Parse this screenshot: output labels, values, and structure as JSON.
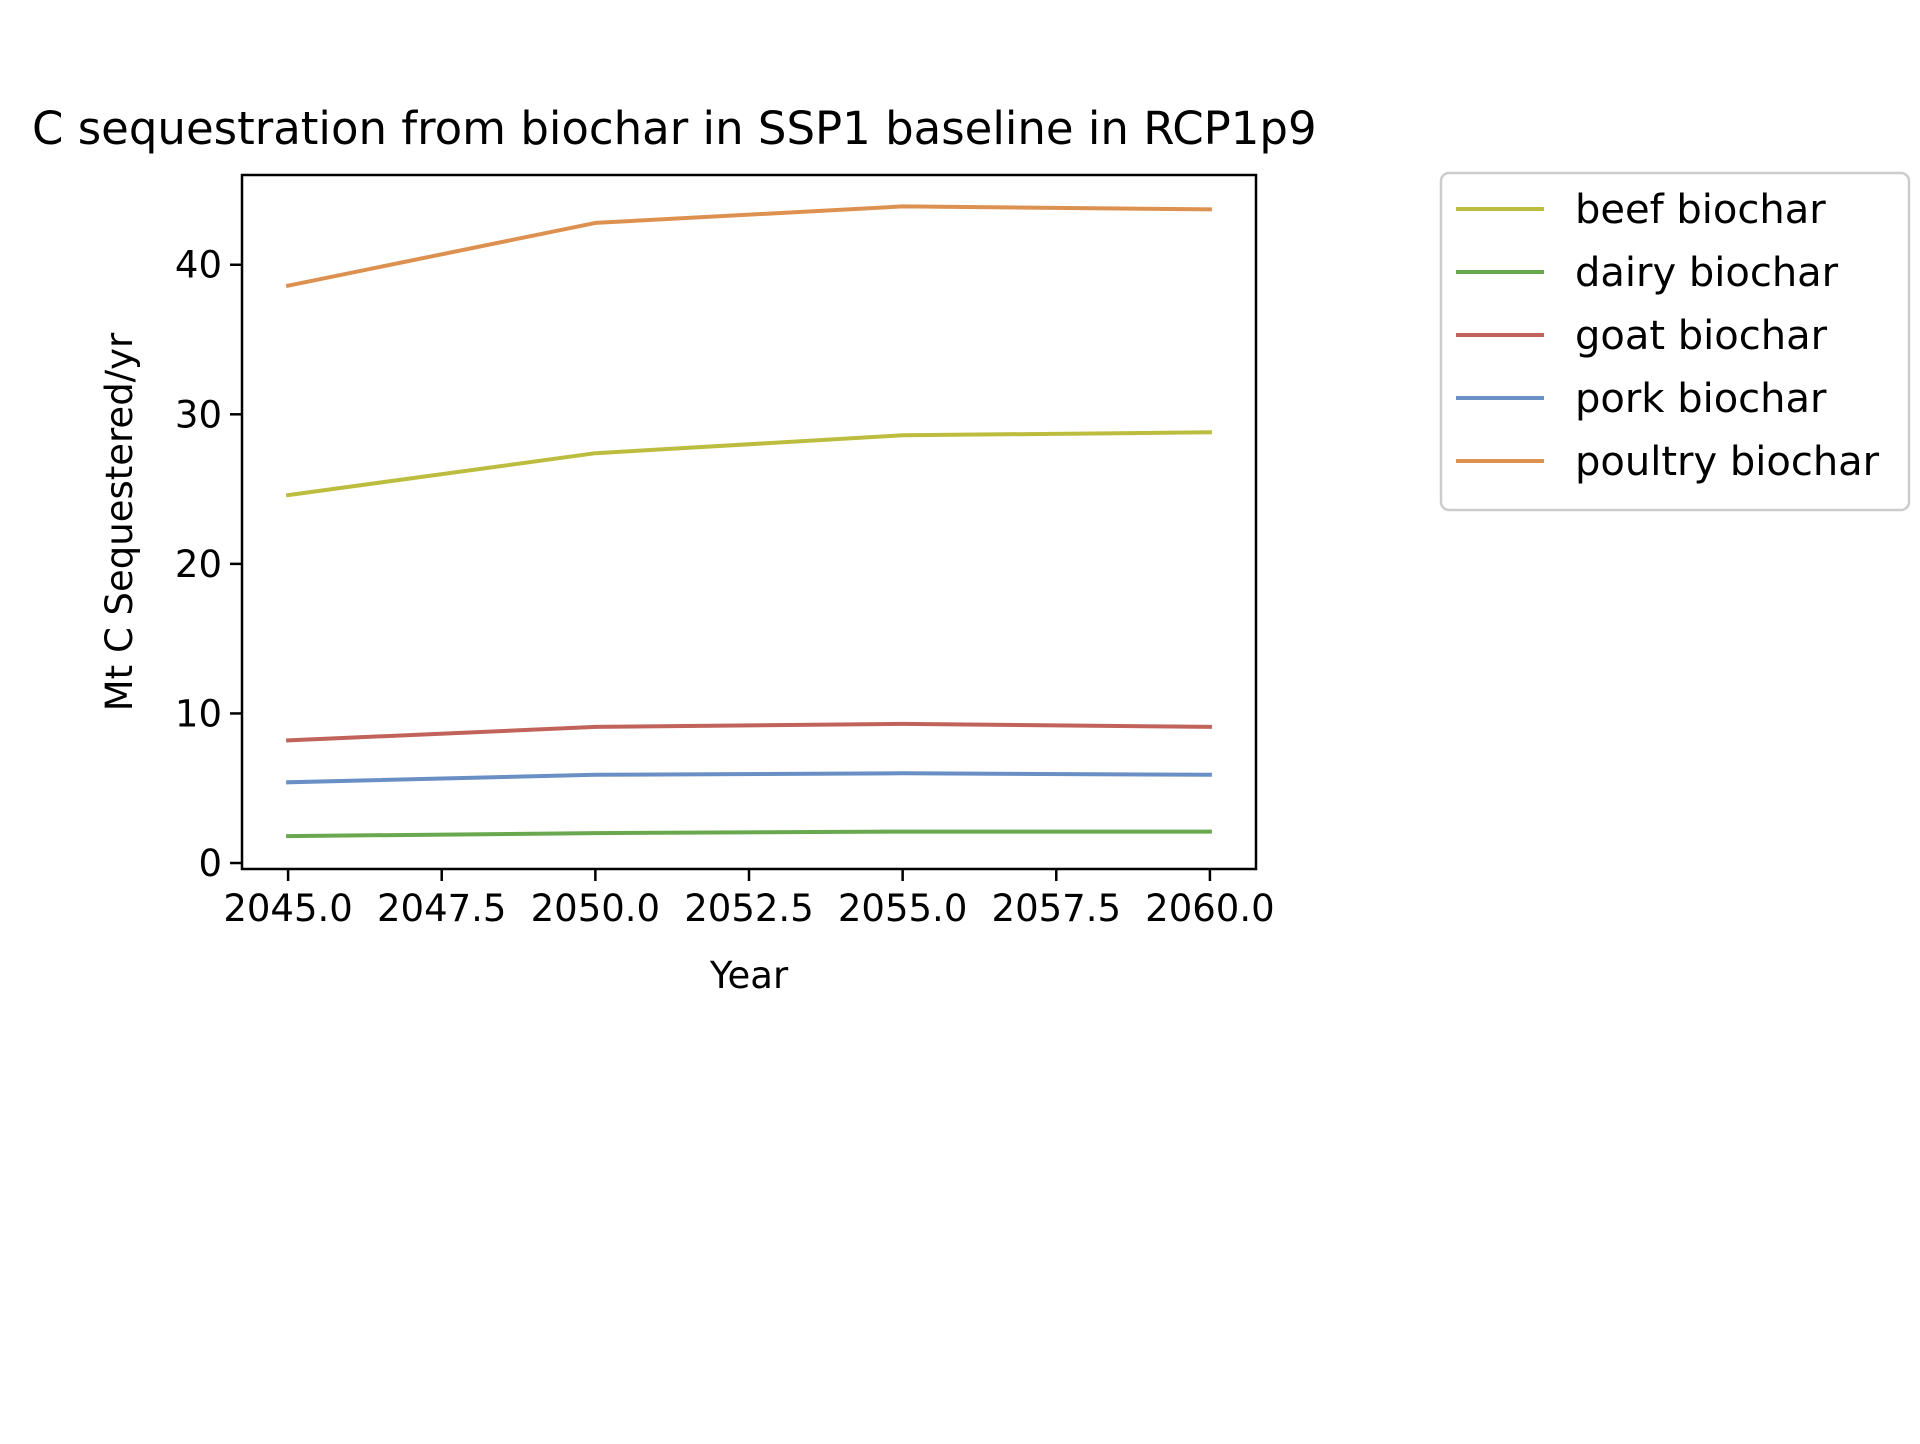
{
  "chart_data": {
    "type": "line",
    "title": "C sequestration from biochar in SSP1 baseline in RCP1p9",
    "xlabel": "Year",
    "ylabel": "Mt C Sequestered/yr",
    "xlim": [
      2044.25,
      2060.75
    ],
    "ylim": [
      -0.4,
      46.0
    ],
    "xticks": [
      2045.0,
      2047.5,
      2050.0,
      2052.5,
      2055.0,
      2057.5,
      2060.0
    ],
    "xtick_labels": [
      "2045.0",
      "2047.5",
      "2050.0",
      "2052.5",
      "2055.0",
      "2057.5",
      "2060.0"
    ],
    "yticks": [
      0,
      10,
      20,
      30,
      40
    ],
    "ytick_labels": [
      "0",
      "10",
      "20",
      "30",
      "40"
    ],
    "grid": false,
    "legend_position": "outside-right-top",
    "x": [
      2045,
      2050,
      2055,
      2060
    ],
    "series": [
      {
        "name": "beef biochar",
        "color": "#bcbd3f",
        "values": [
          24.6,
          27.4,
          28.6,
          28.8
        ]
      },
      {
        "name": "dairy biochar",
        "color": "#6aa84f",
        "values": [
          1.8,
          2.0,
          2.1,
          2.1
        ]
      },
      {
        "name": "goat biochar",
        "color": "#c1635b",
        "values": [
          8.2,
          9.1,
          9.3,
          9.1
        ]
      },
      {
        "name": "pork biochar",
        "color": "#6a8fc4",
        "values": [
          5.4,
          5.9,
          6.0,
          5.9
        ]
      },
      {
        "name": "poultry biochar",
        "color": "#dd9150",
        "values": [
          38.6,
          42.8,
          43.9,
          43.7
        ]
      }
    ]
  }
}
